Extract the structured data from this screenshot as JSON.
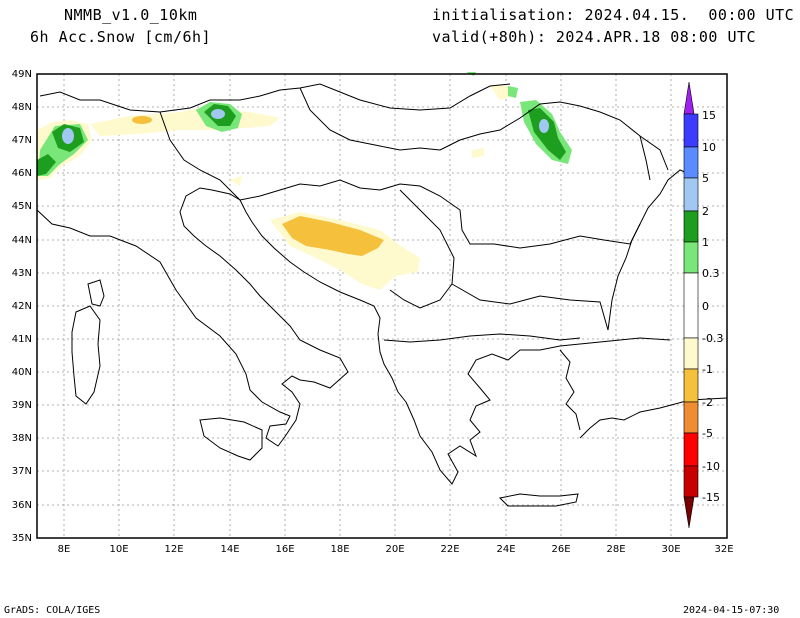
{
  "header": {
    "model": "NMMB_v1.0_10km",
    "variable": "6h Acc.Snow [cm/6h]",
    "init": "initialisation: 2024.04.15.  00:00 UTC",
    "valid": "valid(+80h): 2024.APR.18 08:00 UTC"
  },
  "footer": {
    "credit": "GrADS: COLA/IGES",
    "stamp": "2024-04-15-07:30"
  },
  "axes": {
    "lon_labels": [
      "8E",
      "10E",
      "12E",
      "14E",
      "16E",
      "18E",
      "20E",
      "22E",
      "24E",
      "26E",
      "28E",
      "30E",
      "32E"
    ],
    "lat_labels": [
      "49N",
      "48N",
      "47N",
      "46N",
      "45N",
      "44N",
      "43N",
      "42N",
      "41N",
      "40N",
      "39N",
      "38N",
      "37N",
      "36N",
      "35N"
    ]
  },
  "colorbar": {
    "labels": [
      "15",
      "10",
      "5",
      "2",
      "1",
      "0.3",
      "0",
      "-0.3",
      "-1",
      "-2",
      "-5",
      "-10",
      "-15"
    ],
    "colors": {
      "cap_top": "#a020f0",
      "c15": "#3c3cff",
      "c10": "#5a8cff",
      "c5": "#a0c8f0",
      "c2": "#1e9e1e",
      "c1": "#78e678",
      "c0": "#ffffff",
      "m03": "#fffacd",
      "m1": "#f5c03c",
      "m2": "#f08c32",
      "m5": "#ff0000",
      "m10": "#c80000",
      "cap_bottom": "#780000"
    }
  },
  "map": {
    "region": "Balkans / Central Europe",
    "lon_range": [
      7,
      32
    ],
    "lat_range": [
      35,
      49
    ]
  }
}
